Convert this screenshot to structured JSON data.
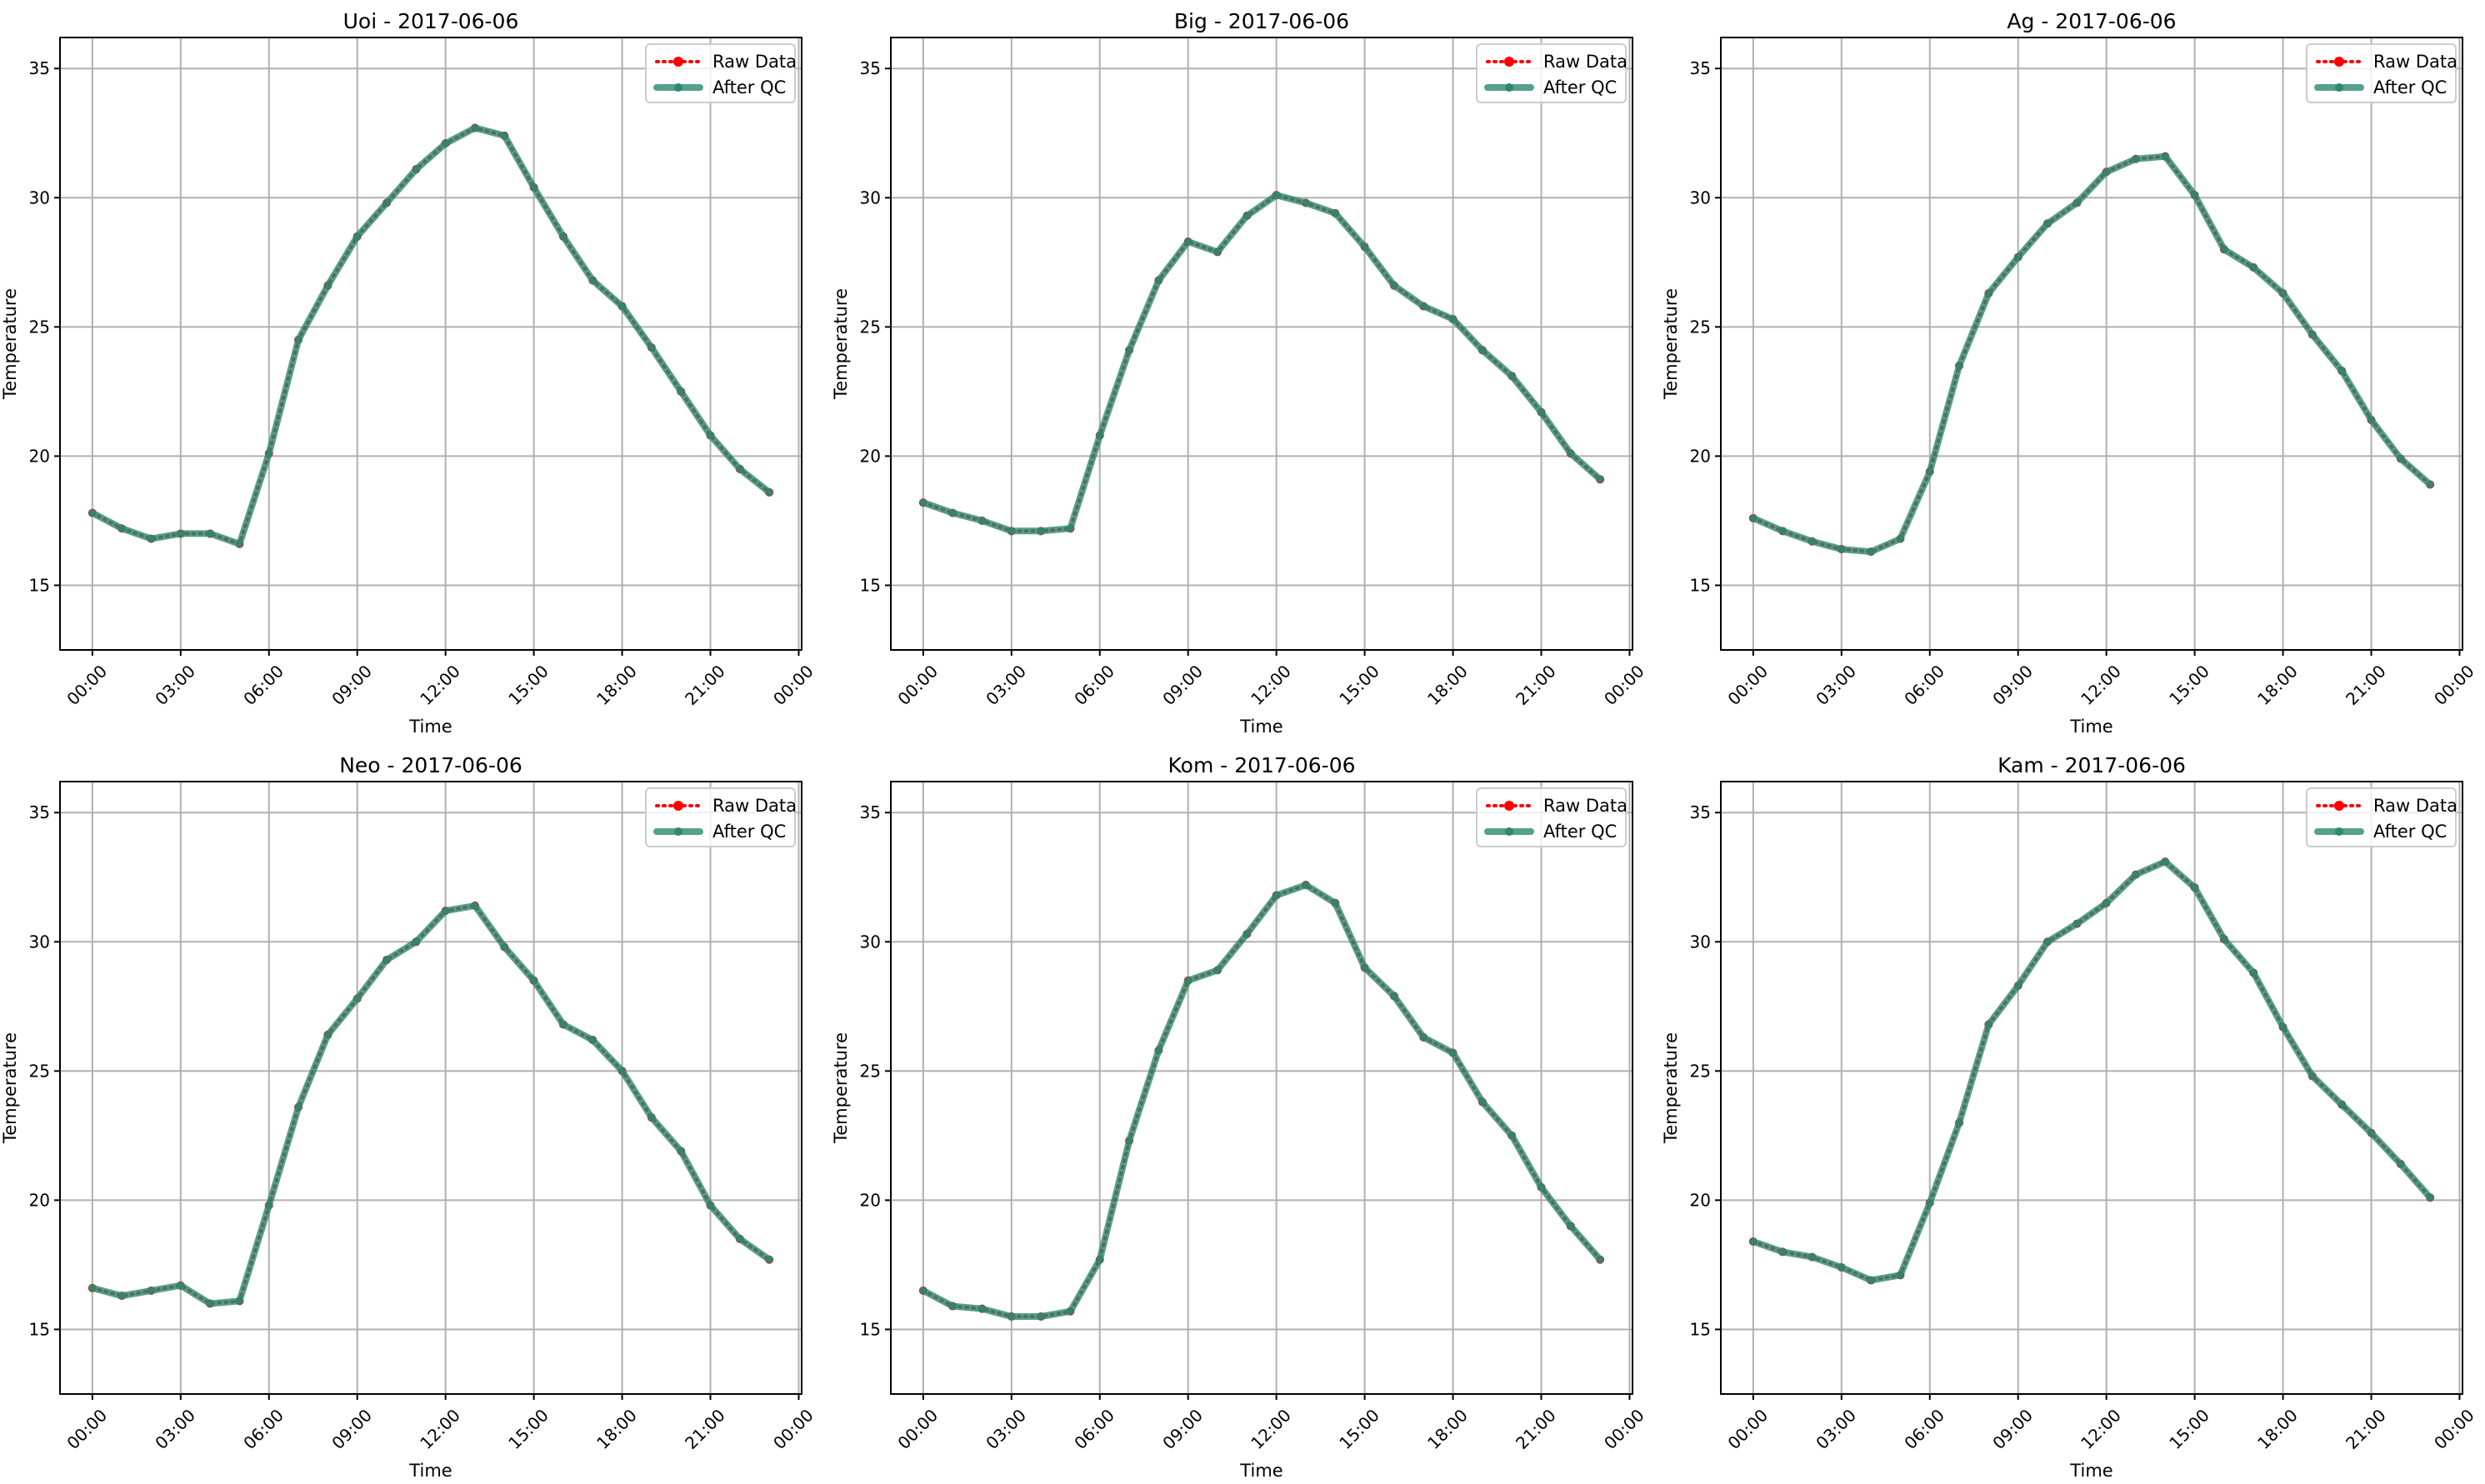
{
  "chart_data": [
    {
      "type": "line",
      "title": "Uoi - 2017-06-06",
      "xlabel": "Time",
      "ylabel": "Temperature",
      "x": [
        "00:00",
        "01:00",
        "02:00",
        "03:00",
        "04:00",
        "05:00",
        "06:00",
        "07:00",
        "08:00",
        "09:00",
        "10:00",
        "11:00",
        "12:00",
        "13:00",
        "14:00",
        "15:00",
        "16:00",
        "17:00",
        "18:00",
        "19:00",
        "20:00",
        "21:00",
        "22:00",
        "23:00"
      ],
      "xticks": [
        "00:00",
        "03:00",
        "06:00",
        "09:00",
        "12:00",
        "15:00",
        "18:00",
        "21:00",
        "00:00"
      ],
      "yticks": [
        15,
        20,
        25,
        30,
        35
      ],
      "ylim": [
        12.5,
        36.2
      ],
      "grid": true,
      "legend": "top-right",
      "series": [
        {
          "name": "Raw Data",
          "color": "#ff0000",
          "values": [
            17.8,
            17.2,
            16.8,
            17.0,
            17.0,
            16.6,
            20.1,
            24.5,
            26.6,
            28.5,
            29.8,
            31.1,
            32.1,
            32.7,
            32.4,
            30.4,
            28.5,
            26.8,
            25.8,
            24.2,
            22.5,
            20.8,
            19.5,
            18.6
          ]
        },
        {
          "name": "After QC",
          "color": "#2a8a6e",
          "values": [
            17.8,
            17.2,
            16.8,
            17.0,
            17.0,
            16.6,
            20.1,
            24.5,
            26.6,
            28.5,
            29.8,
            31.1,
            32.1,
            32.7,
            32.4,
            30.4,
            28.5,
            26.8,
            25.8,
            24.2,
            22.5,
            20.8,
            19.5,
            18.6
          ]
        }
      ]
    },
    {
      "type": "line",
      "title": "Big - 2017-06-06",
      "xlabel": "Time",
      "ylabel": "Temperature",
      "x": [
        "00:00",
        "01:00",
        "02:00",
        "03:00",
        "04:00",
        "05:00",
        "06:00",
        "07:00",
        "08:00",
        "09:00",
        "10:00",
        "11:00",
        "12:00",
        "13:00",
        "14:00",
        "15:00",
        "16:00",
        "17:00",
        "18:00",
        "19:00",
        "20:00",
        "21:00",
        "22:00",
        "23:00"
      ],
      "xticks": [
        "00:00",
        "03:00",
        "06:00",
        "09:00",
        "12:00",
        "15:00",
        "18:00",
        "21:00",
        "00:00"
      ],
      "yticks": [
        15,
        20,
        25,
        30,
        35
      ],
      "ylim": [
        12.5,
        36.2
      ],
      "grid": true,
      "legend": "top-right",
      "series": [
        {
          "name": "Raw Data",
          "color": "#ff0000",
          "values": [
            18.2,
            17.8,
            17.5,
            17.1,
            17.1,
            17.2,
            20.8,
            24.1,
            26.8,
            28.3,
            27.9,
            29.3,
            30.1,
            29.8,
            29.4,
            28.1,
            26.6,
            25.8,
            25.3,
            24.1,
            23.1,
            21.7,
            20.1,
            19.1
          ]
        },
        {
          "name": "After QC",
          "color": "#2a8a6e",
          "values": [
            18.2,
            17.8,
            17.5,
            17.1,
            17.1,
            17.2,
            20.8,
            24.1,
            26.8,
            28.3,
            27.9,
            29.3,
            30.1,
            29.8,
            29.4,
            28.1,
            26.6,
            25.8,
            25.3,
            24.1,
            23.1,
            21.7,
            20.1,
            19.1
          ]
        }
      ]
    },
    {
      "type": "line",
      "title": "Ag - 2017-06-06",
      "xlabel": "Time",
      "ylabel": "Temperature",
      "x": [
        "00:00",
        "01:00",
        "02:00",
        "03:00",
        "04:00",
        "05:00",
        "06:00",
        "07:00",
        "08:00",
        "09:00",
        "10:00",
        "11:00",
        "12:00",
        "13:00",
        "14:00",
        "15:00",
        "16:00",
        "17:00",
        "18:00",
        "19:00",
        "20:00",
        "21:00",
        "22:00",
        "23:00"
      ],
      "xticks": [
        "00:00",
        "03:00",
        "06:00",
        "09:00",
        "12:00",
        "15:00",
        "18:00",
        "21:00",
        "00:00"
      ],
      "yticks": [
        15,
        20,
        25,
        30,
        35
      ],
      "ylim": [
        12.5,
        36.2
      ],
      "grid": true,
      "legend": "top-right",
      "series": [
        {
          "name": "Raw Data",
          "color": "#ff0000",
          "values": [
            17.6,
            17.1,
            16.7,
            16.4,
            16.3,
            16.8,
            19.4,
            23.5,
            26.3,
            27.7,
            29.0,
            29.8,
            31.0,
            31.5,
            31.6,
            30.1,
            28.0,
            27.3,
            26.3,
            24.7,
            23.3,
            21.4,
            19.9,
            18.9
          ]
        },
        {
          "name": "After QC",
          "color": "#2a8a6e",
          "values": [
            17.6,
            17.1,
            16.7,
            16.4,
            16.3,
            16.8,
            19.4,
            23.5,
            26.3,
            27.7,
            29.0,
            29.8,
            31.0,
            31.5,
            31.6,
            30.1,
            28.0,
            27.3,
            26.3,
            24.7,
            23.3,
            21.4,
            19.9,
            18.9
          ]
        }
      ]
    },
    {
      "type": "line",
      "title": "Neo - 2017-06-06",
      "xlabel": "Time",
      "ylabel": "Temperature",
      "x": [
        "00:00",
        "01:00",
        "02:00",
        "03:00",
        "04:00",
        "05:00",
        "06:00",
        "07:00",
        "08:00",
        "09:00",
        "10:00",
        "11:00",
        "12:00",
        "13:00",
        "14:00",
        "15:00",
        "16:00",
        "17:00",
        "18:00",
        "19:00",
        "20:00",
        "21:00",
        "22:00",
        "23:00"
      ],
      "xticks": [
        "00:00",
        "03:00",
        "06:00",
        "09:00",
        "12:00",
        "15:00",
        "18:00",
        "21:00",
        "00:00"
      ],
      "yticks": [
        15,
        20,
        25,
        30,
        35
      ],
      "ylim": [
        12.5,
        36.2
      ],
      "grid": true,
      "legend": "top-right",
      "series": [
        {
          "name": "Raw Data",
          "color": "#ff0000",
          "values": [
            16.6,
            16.3,
            16.5,
            16.7,
            16.0,
            16.1,
            19.8,
            23.6,
            26.4,
            27.8,
            29.3,
            30.0,
            31.2,
            31.4,
            29.8,
            28.5,
            26.8,
            26.2,
            25.0,
            23.2,
            21.9,
            19.8,
            18.5,
            17.7
          ]
        },
        {
          "name": "After QC",
          "color": "#2a8a6e",
          "values": [
            16.6,
            16.3,
            16.5,
            16.7,
            16.0,
            16.1,
            19.8,
            23.6,
            26.4,
            27.8,
            29.3,
            30.0,
            31.2,
            31.4,
            29.8,
            28.5,
            26.8,
            26.2,
            25.0,
            23.2,
            21.9,
            19.8,
            18.5,
            17.7
          ]
        }
      ]
    },
    {
      "type": "line",
      "title": "Kom - 2017-06-06",
      "xlabel": "Time",
      "ylabel": "Temperature",
      "x": [
        "00:00",
        "01:00",
        "02:00",
        "03:00",
        "04:00",
        "05:00",
        "06:00",
        "07:00",
        "08:00",
        "09:00",
        "10:00",
        "11:00",
        "12:00",
        "13:00",
        "14:00",
        "15:00",
        "16:00",
        "17:00",
        "18:00",
        "19:00",
        "20:00",
        "21:00",
        "22:00",
        "23:00"
      ],
      "xticks": [
        "00:00",
        "03:00",
        "06:00",
        "09:00",
        "12:00",
        "15:00",
        "18:00",
        "21:00",
        "00:00"
      ],
      "yticks": [
        15,
        20,
        25,
        30,
        35
      ],
      "ylim": [
        12.5,
        36.2
      ],
      "grid": true,
      "legend": "top-right",
      "series": [
        {
          "name": "Raw Data",
          "color": "#ff0000",
          "values": [
            16.5,
            15.9,
            15.8,
            15.5,
            15.5,
            15.7,
            17.7,
            22.3,
            25.8,
            28.5,
            28.9,
            30.3,
            31.8,
            32.2,
            31.5,
            29.0,
            27.9,
            26.3,
            25.7,
            23.8,
            22.5,
            20.5,
            19.0,
            17.7
          ]
        },
        {
          "name": "After QC",
          "color": "#2a8a6e",
          "values": [
            16.5,
            15.9,
            15.8,
            15.5,
            15.5,
            15.7,
            17.7,
            22.3,
            25.8,
            28.5,
            28.9,
            30.3,
            31.8,
            32.2,
            31.5,
            29.0,
            27.9,
            26.3,
            25.7,
            23.8,
            22.5,
            20.5,
            19.0,
            17.7
          ]
        }
      ]
    },
    {
      "type": "line",
      "title": "Kam - 2017-06-06",
      "xlabel": "Time",
      "ylabel": "Temperature",
      "x": [
        "00:00",
        "01:00",
        "02:00",
        "03:00",
        "04:00",
        "05:00",
        "06:00",
        "07:00",
        "08:00",
        "09:00",
        "10:00",
        "11:00",
        "12:00",
        "13:00",
        "14:00",
        "15:00",
        "16:00",
        "17:00",
        "18:00",
        "19:00",
        "20:00",
        "21:00",
        "22:00",
        "23:00"
      ],
      "xticks": [
        "00:00",
        "03:00",
        "06:00",
        "09:00",
        "12:00",
        "15:00",
        "18:00",
        "21:00",
        "00:00"
      ],
      "yticks": [
        15,
        20,
        25,
        30,
        35
      ],
      "ylim": [
        12.5,
        36.2
      ],
      "grid": true,
      "legend": "top-right",
      "series": [
        {
          "name": "Raw Data",
          "color": "#ff0000",
          "values": [
            18.4,
            18.0,
            17.8,
            17.4,
            16.9,
            17.1,
            19.9,
            23.0,
            26.8,
            28.3,
            30.0,
            30.7,
            31.5,
            32.6,
            33.1,
            32.1,
            30.1,
            28.8,
            26.7,
            24.8,
            23.7,
            22.6,
            21.4,
            20.1
          ]
        },
        {
          "name": "After QC",
          "color": "#2a8a6e",
          "values": [
            18.4,
            18.0,
            17.8,
            17.4,
            16.9,
            17.1,
            19.9,
            23.0,
            26.8,
            28.3,
            30.0,
            30.7,
            31.5,
            32.6,
            33.1,
            32.1,
            30.1,
            28.8,
            26.7,
            24.8,
            23.7,
            22.6,
            21.4,
            20.1
          ]
        }
      ]
    }
  ]
}
